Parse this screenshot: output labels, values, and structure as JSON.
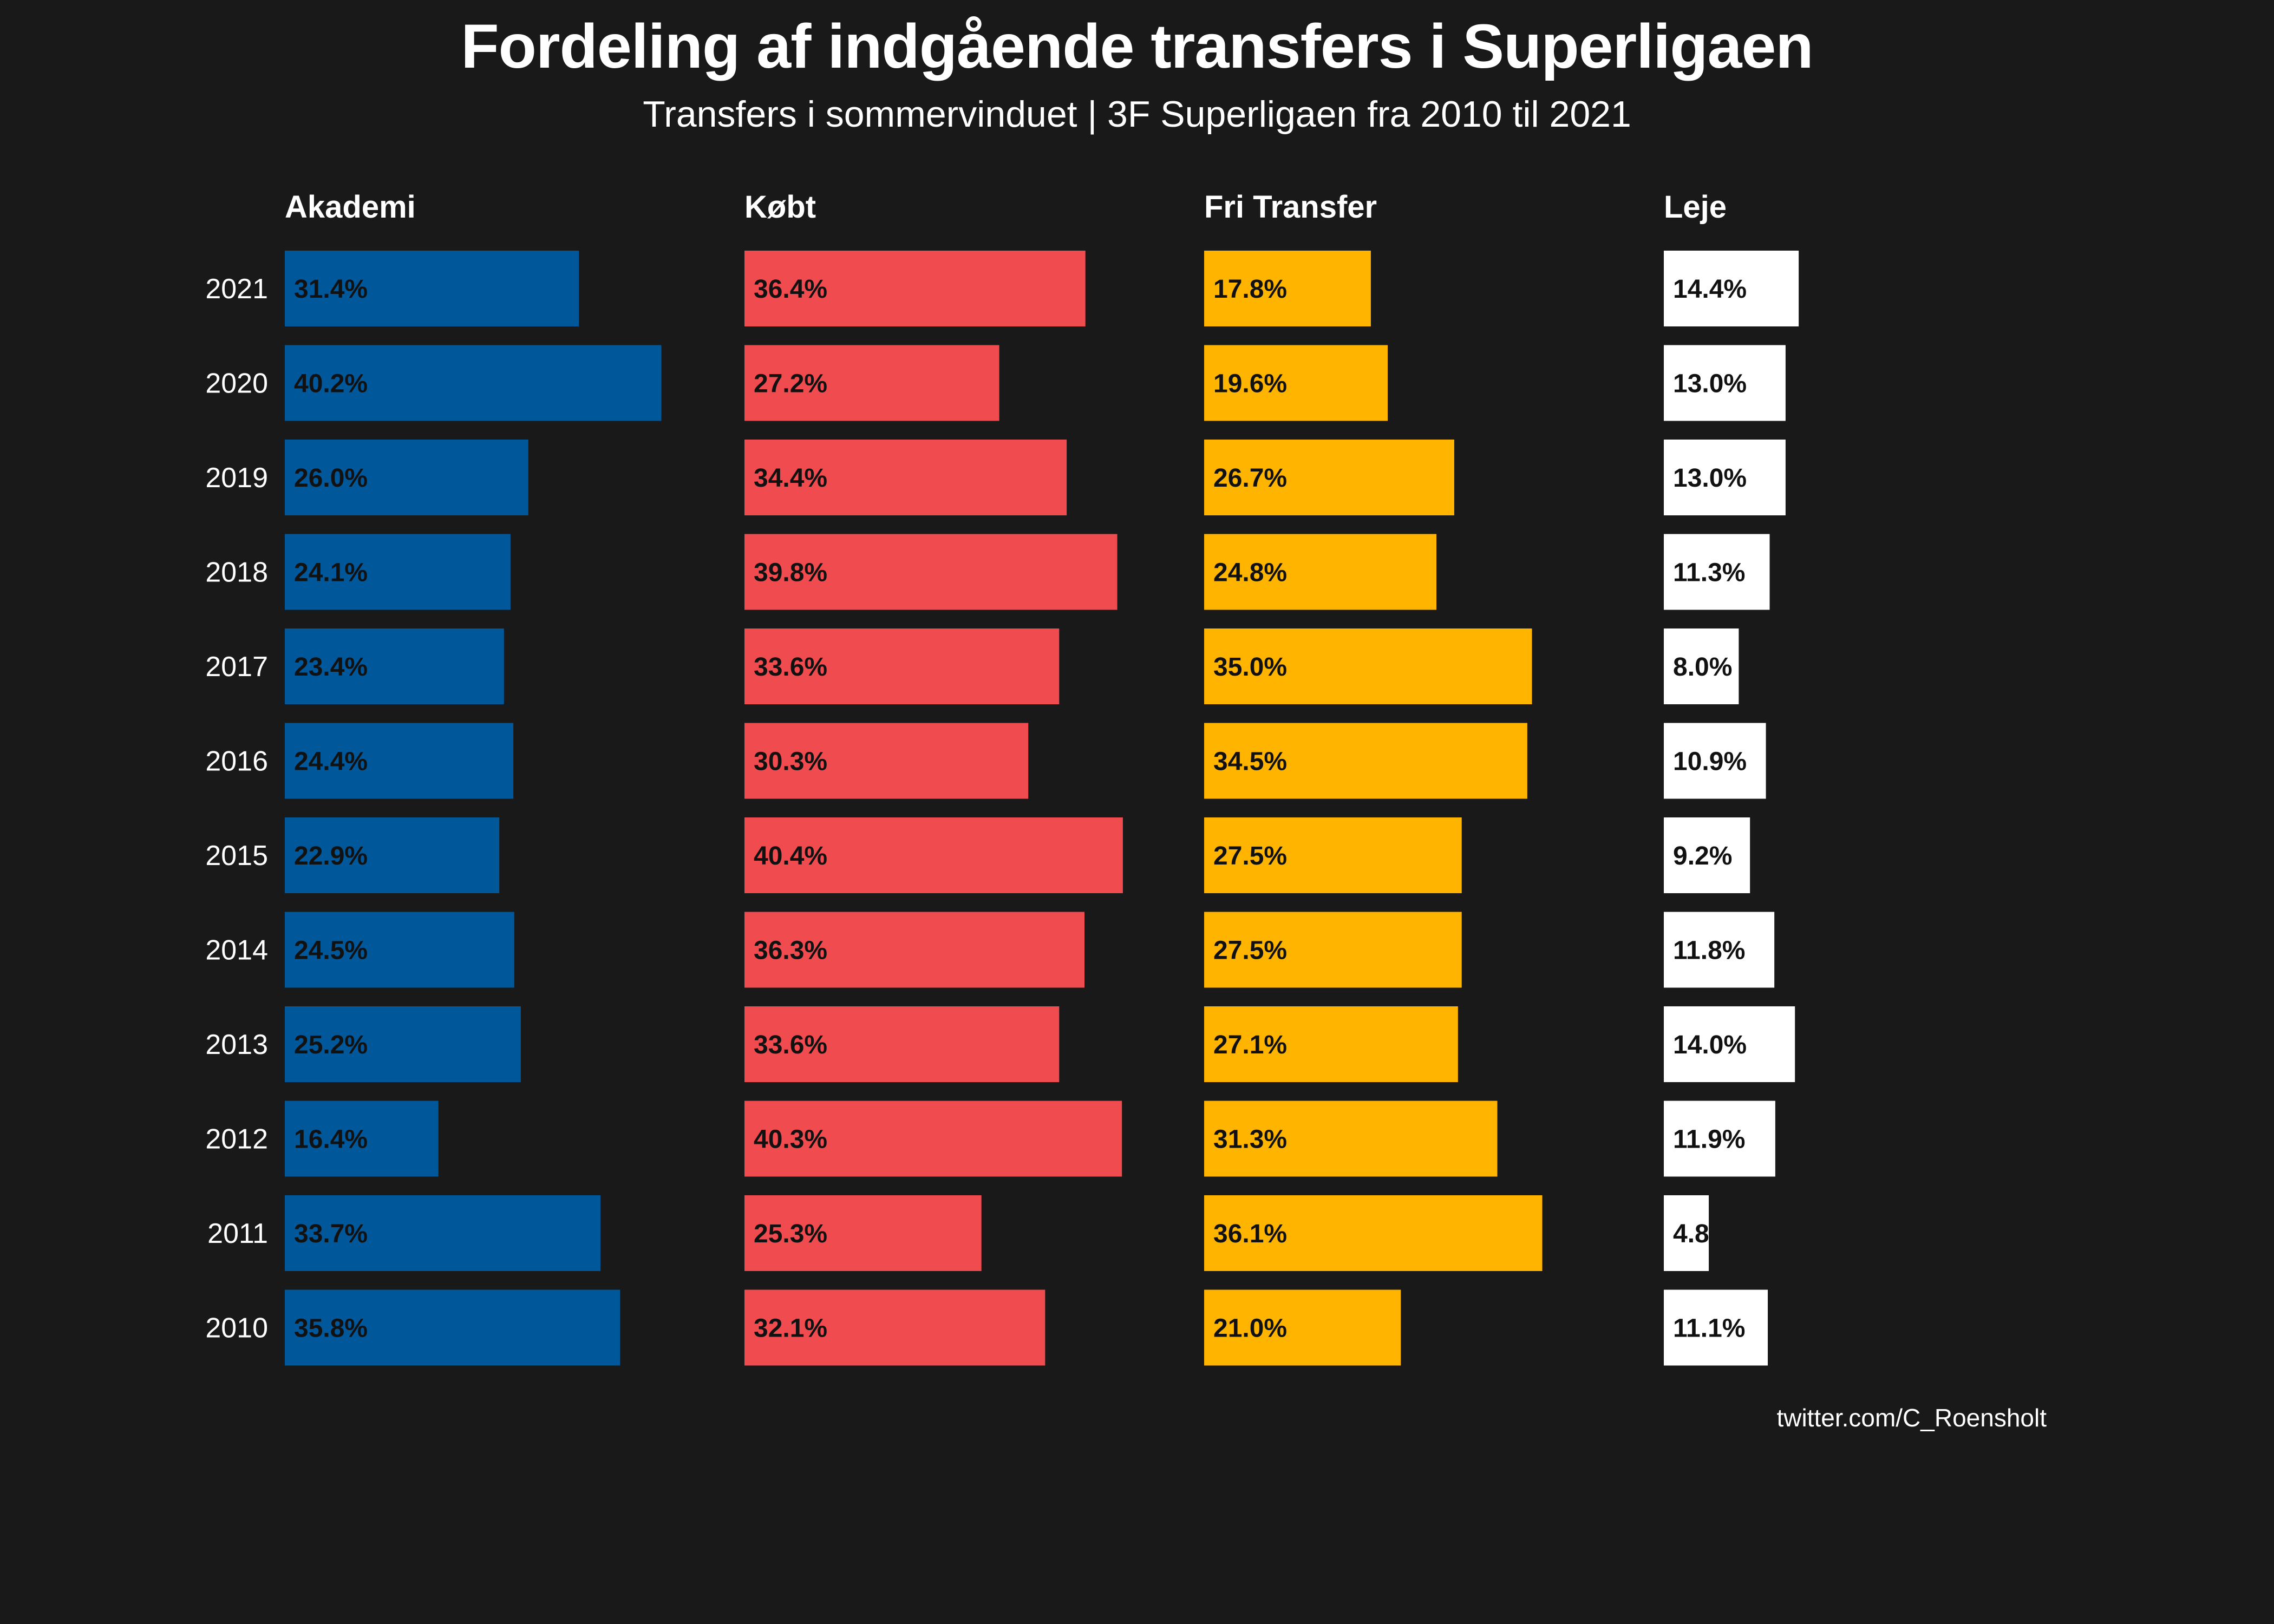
{
  "chart_data": {
    "type": "bar",
    "orientation": "horizontal",
    "title": "Fordeling af indgående transfers i Superligaen",
    "subtitle": "Transfers i sommervinduet | 3F Superligaen fra 2010 til 2021",
    "caption": "twitter.com/C_Roensholt",
    "categories": [
      "2021",
      "2020",
      "2019",
      "2018",
      "2017",
      "2016",
      "2015",
      "2014",
      "2013",
      "2012",
      "2011",
      "2010"
    ],
    "xlim": [
      0,
      40.4
    ],
    "grid": false,
    "legend": "none",
    "facets": [
      {
        "name": "Akademi",
        "color": "#00579A",
        "values": [
          31.4,
          40.2,
          26.0,
          24.1,
          23.4,
          24.4,
          22.9,
          24.5,
          25.2,
          16.4,
          33.7,
          35.8
        ],
        "labels": [
          "31.4%",
          "40.2%",
          "26.0%",
          "24.1%",
          "23.4%",
          "24.4%",
          "22.9%",
          "24.5%",
          "25.2%",
          "16.4%",
          "33.7%",
          "35.8%"
        ]
      },
      {
        "name": "Købt",
        "color": "#F04B4F",
        "values": [
          36.4,
          27.2,
          34.4,
          39.8,
          33.6,
          30.3,
          40.4,
          36.3,
          33.6,
          40.3,
          25.3,
          32.1
        ],
        "labels": [
          "36.4%",
          "27.2%",
          "34.4%",
          "39.8%",
          "33.6%",
          "30.3%",
          "40.4%",
          "36.3%",
          "33.6%",
          "40.3%",
          "25.3%",
          "32.1%"
        ]
      },
      {
        "name": "Fri Transfer",
        "color": "#FFB500",
        "values": [
          17.8,
          19.6,
          26.7,
          24.8,
          35.0,
          34.5,
          27.5,
          27.5,
          27.1,
          31.3,
          36.1,
          21.0
        ],
        "labels": [
          "17.8%",
          "19.6%",
          "26.7%",
          "24.8%",
          "35.0%",
          "34.5%",
          "27.5%",
          "27.5%",
          "27.1%",
          "31.3%",
          "36.1%",
          "21.0%"
        ]
      },
      {
        "name": "Leje",
        "color": "#FFFFFF",
        "values": [
          14.4,
          13.0,
          13.0,
          11.3,
          8.0,
          10.9,
          9.2,
          11.8,
          14.0,
          11.9,
          4.8,
          11.1
        ],
        "labels": [
          "14.4%",
          "13.0%",
          "13.0%",
          "11.3%",
          "8.0%",
          "10.9%",
          "9.2%",
          "11.8%",
          "14.0%",
          "11.9%",
          "4.8",
          "11.1%"
        ]
      }
    ]
  }
}
